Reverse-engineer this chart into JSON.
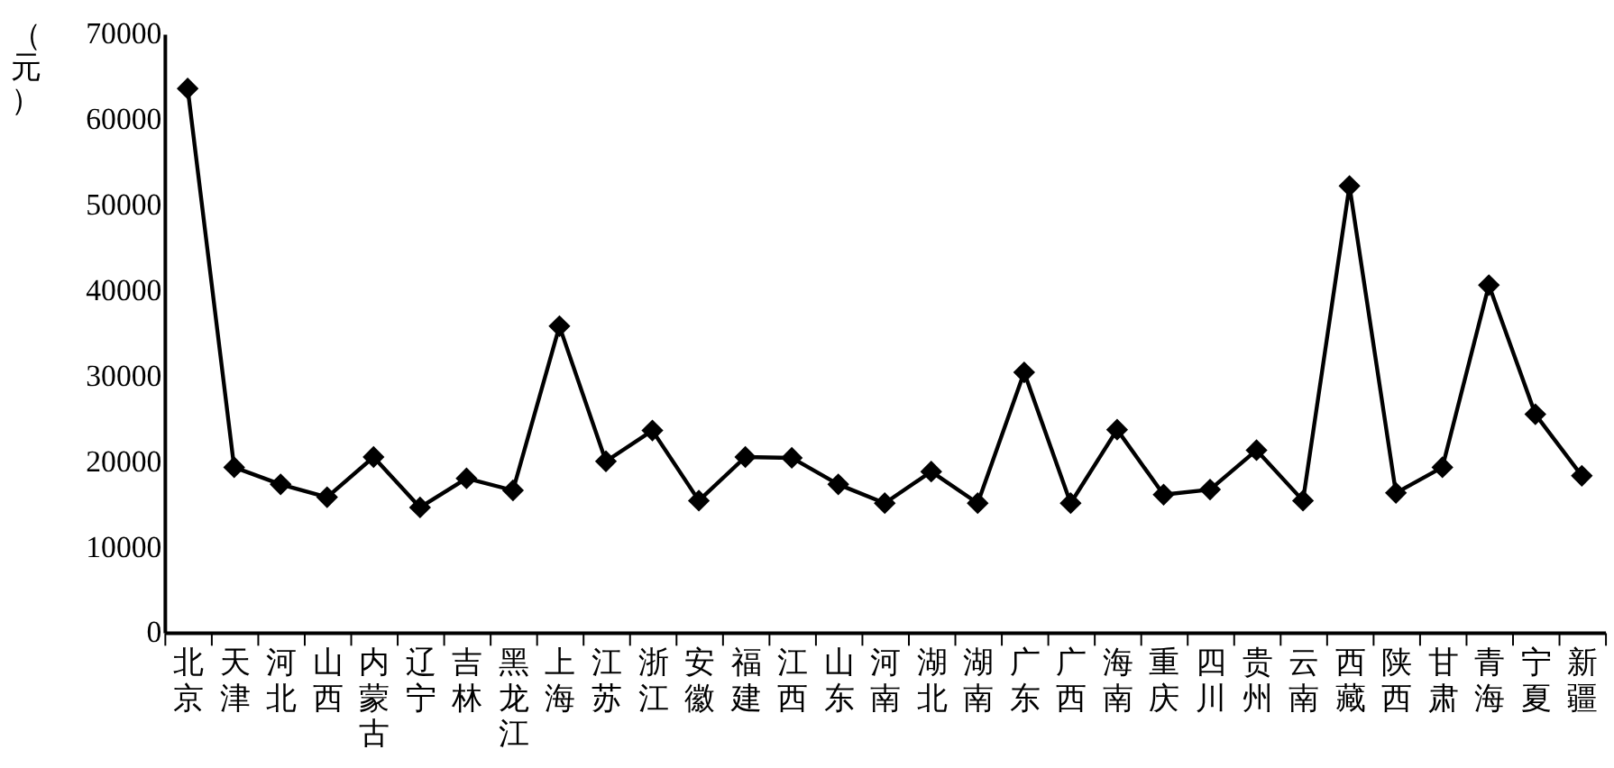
{
  "chart_data": {
    "type": "line",
    "ylabel": "（元）",
    "categories": [
      "北京",
      "天津",
      "河北",
      "山西",
      "内蒙古",
      "辽宁",
      "吉林",
      "黑龙江",
      "上海",
      "江苏",
      "浙江",
      "安徽",
      "福建",
      "江西",
      "山东",
      "河南",
      "湖北",
      "湖南",
      "广东",
      "广西",
      "海南",
      "重庆",
      "四川",
      "贵州",
      "云南",
      "西藏",
      "陕西",
      "甘肃",
      "青海",
      "宁夏",
      "新疆"
    ],
    "series": [
      {
        "color": "#000000",
        "values": [
          63600,
          19300,
          17300,
          15800,
          20500,
          14600,
          18000,
          16600,
          35800,
          20000,
          23600,
          15400,
          20500,
          20400,
          17300,
          15100,
          18800,
          15100,
          30400,
          15100,
          23700,
          16100,
          16700,
          21300,
          15400,
          52200,
          16300,
          19300,
          40600,
          25500,
          18300
        ]
      }
    ],
    "ylim": [
      0,
      70000
    ],
    "yticks": [
      0,
      10000,
      20000,
      30000,
      40000,
      50000,
      60000,
      70000
    ],
    "marker": "diamond",
    "line_style": "solid",
    "grid": false
  }
}
